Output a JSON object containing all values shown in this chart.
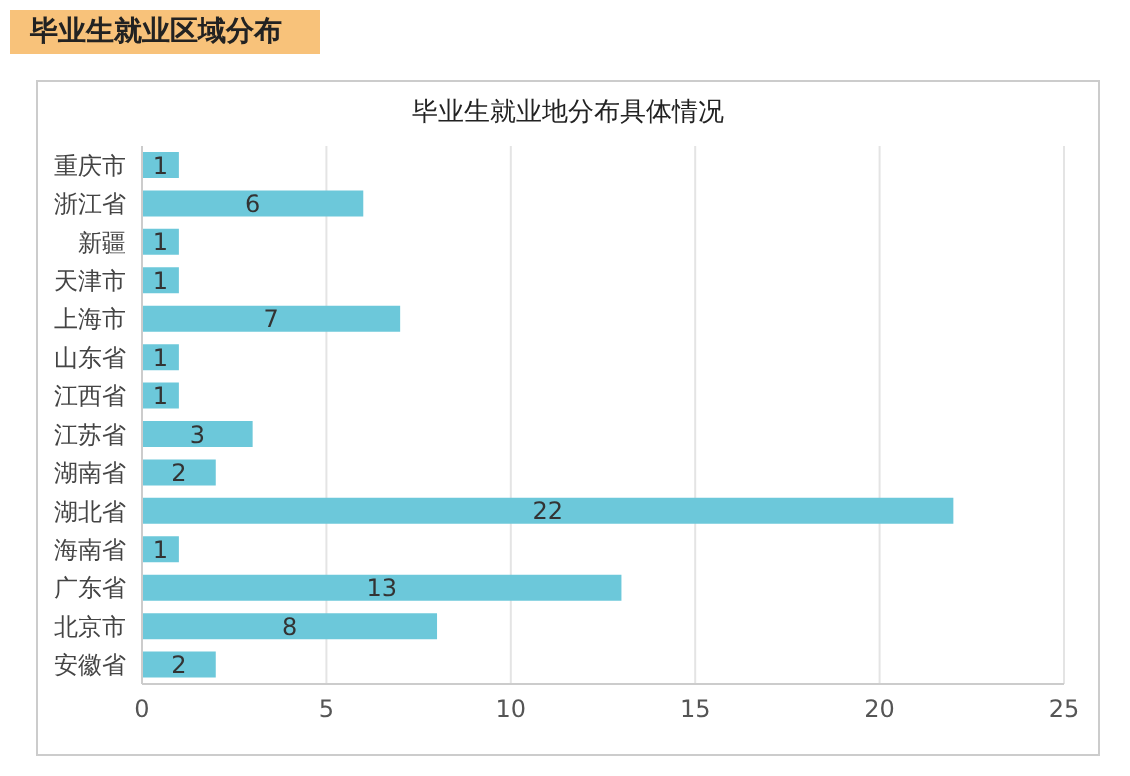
{
  "chart_data": {
    "type": "bar",
    "orientation": "horizontal",
    "title": "毕业生就业区域分布",
    "subtitle": "毕业生就业地分布具体情况",
    "categories": [
      "重庆市",
      "浙江省",
      "新疆",
      "天津市",
      "上海市",
      "山东省",
      "江西省",
      "江苏省",
      "湖南省",
      "湖北省",
      "海南省",
      "广东省",
      "北京市",
      "安徽省"
    ],
    "values": [
      1,
      6,
      1,
      1,
      7,
      1,
      1,
      3,
      2,
      22,
      1,
      13,
      8,
      2
    ],
    "color": "#6cc8da",
    "xlim": [
      0,
      25
    ],
    "xticks": [
      0,
      5,
      10,
      15,
      20,
      25
    ],
    "grid": "x",
    "data_labels": true
  }
}
